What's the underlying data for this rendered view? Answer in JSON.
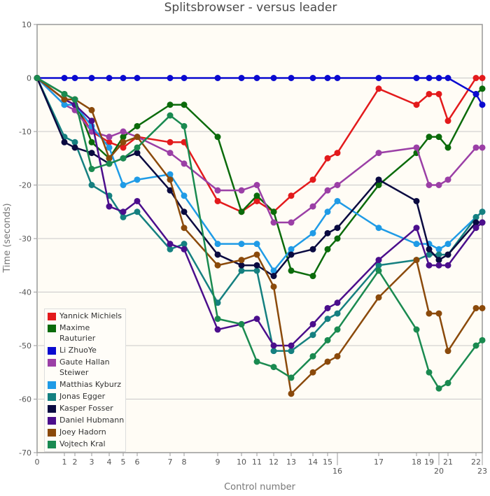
{
  "chart_data": {
    "type": "line",
    "title": "Splitsbrowser - versus leader",
    "xlabel": "Control number",
    "ylabel": "Time (seconds)",
    "ylim": [
      -70,
      10
    ],
    "yticks": [
      10,
      0,
      -10,
      -20,
      -30,
      -40,
      -50,
      -60,
      -70
    ],
    "x": [
      0,
      1,
      2,
      3,
      4,
      5,
      6,
      7,
      8,
      9,
      10,
      11,
      12,
      13,
      14,
      15,
      16,
      17,
      18,
      19,
      20,
      21,
      22,
      23
    ],
    "xtick_labels": [
      "0",
      "1",
      "2",
      "3",
      "4",
      "5",
      "6",
      "7",
      "8",
      "9",
      "10",
      "11",
      "12",
      "13",
      "14",
      "15",
      "16",
      "17",
      "18",
      "19",
      "20",
      "21",
      "22",
      "23"
    ],
    "grid": true,
    "legend_position": "bottom-left",
    "series": [
      {
        "name": "Yannick Michiels",
        "color": "#e31a1c",
        "values": [
          0,
          -4,
          -5,
          -10,
          -12,
          -13,
          -11,
          -12,
          -12,
          -23,
          -25,
          -23,
          -25,
          -22,
          -19,
          -15,
          -14,
          -2,
          -5,
          -3,
          -3,
          -8,
          0,
          0
        ]
      },
      {
        "name": "Maxime Rauturier",
        "color": "#0b6b0b",
        "values": [
          0,
          -3,
          -4,
          -12,
          -15,
          -11,
          -9,
          -5,
          -5,
          -11,
          -25,
          -22,
          -25,
          -36,
          -37,
          -32,
          -30,
          -20,
          -14,
          -11,
          -11,
          -13,
          -3,
          -2
        ]
      },
      {
        "name": "Li ZhuoYe",
        "color": "#0a0ad0",
        "values": [
          0,
          0,
          0,
          0,
          0,
          0,
          0,
          0,
          0,
          0,
          0,
          0,
          0,
          0,
          0,
          0,
          0,
          0,
          0,
          0,
          0,
          0,
          -3,
          -5
        ]
      },
      {
        "name": "Gaute Hallan Steiwer",
        "color": "#9b3fa6",
        "values": [
          0,
          -5,
          -6,
          -10,
          -11,
          -10,
          -11,
          -14,
          -16,
          -21,
          -21,
          -20,
          -27,
          -27,
          -24,
          -21,
          -20,
          -14,
          -13,
          -20,
          -20,
          -19,
          -13,
          -13
        ]
      },
      {
        "name": "Matthias Kyburz",
        "color": "#1f9be6",
        "values": [
          0,
          -5,
          -5,
          -9,
          -13,
          -20,
          -19,
          -18,
          -22,
          -31,
          -31,
          -31,
          -36,
          -32,
          -29,
          -25,
          -23,
          -28,
          -31,
          -31,
          -32,
          -31,
          -26,
          -25
        ]
      },
      {
        "name": "Jonas Egger",
        "color": "#158080",
        "values": [
          0,
          -11,
          -12,
          -20,
          -22,
          -26,
          -25,
          -32,
          -31,
          -42,
          -36,
          -36,
          -51,
          -51,
          -48,
          -45,
          -44,
          -35,
          -34,
          -33,
          -33,
          -33,
          -26,
          -25
        ]
      },
      {
        "name": "Kasper Fosser",
        "color": "#0a0a40",
        "values": [
          0,
          -12,
          -13,
          -14,
          -16,
          -15,
          -14,
          -21,
          -25,
          -33,
          -35,
          -35,
          -37,
          -33,
          -32,
          -29,
          -28,
          -19,
          -23,
          -32,
          -34,
          -33,
          -27,
          -27
        ]
      },
      {
        "name": "Daniel Hubmann",
        "color": "#4b0e8c",
        "values": [
          0,
          -4,
          -5,
          -8,
          -24,
          -25,
          -23,
          -31,
          -32,
          -47,
          -46,
          -45,
          -50,
          -50,
          -46,
          -43,
          -42,
          -34,
          -28,
          -35,
          -35,
          -35,
          -28,
          -27
        ]
      },
      {
        "name": "Joey Hadorn",
        "color": "#8b4a0b",
        "values": [
          0,
          -4,
          -4,
          -6,
          -15,
          -12,
          -11,
          -19,
          -28,
          -35,
          -34,
          -33,
          -39,
          -59,
          -55,
          -53,
          -52,
          -41,
          -34,
          -44,
          -44,
          -51,
          -43,
          -43
        ]
      },
      {
        "name": "Vojtech Kral",
        "color": "#1a8a50",
        "values": [
          0,
          -3,
          -4,
          -17,
          -16,
          -15,
          -13,
          -7,
          -9,
          -45,
          -46,
          -53,
          -54,
          -56,
          -52,
          -49,
          -47,
          -36,
          -47,
          -55,
          -58,
          -57,
          -50,
          -49
        ]
      }
    ]
  }
}
